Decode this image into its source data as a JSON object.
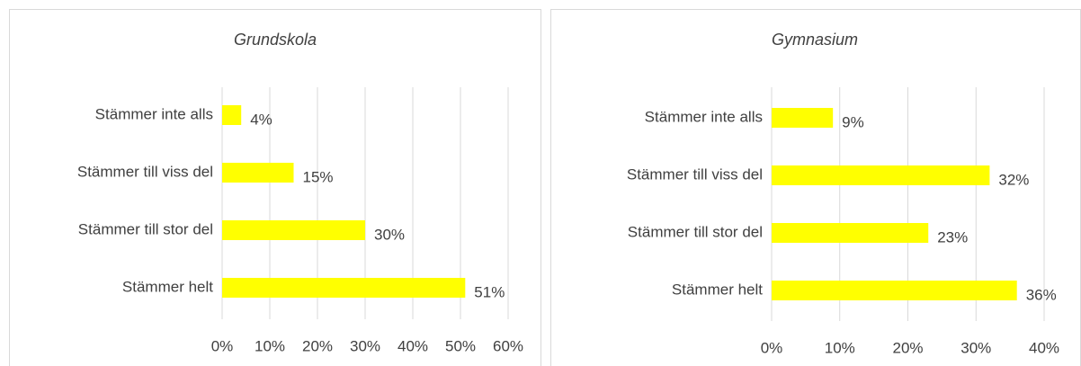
{
  "chart_data": [
    {
      "type": "bar",
      "title": "Grundskola",
      "categories": [
        "Stämmer inte alls",
        "Stämmer till viss del",
        "Stämmer till stor del",
        "Stämmer helt"
      ],
      "values": [
        4,
        15,
        30,
        51
      ],
      "value_labels": [
        "4%",
        "15%",
        "30%",
        "51%"
      ],
      "color": "#ffff00",
      "xlim": [
        0,
        60
      ],
      "xticks": [
        {
          "value": 0,
          "label": "0%"
        },
        {
          "value": 10,
          "label": "10%"
        },
        {
          "value": 20,
          "label": "20%"
        },
        {
          "value": 30,
          "label": "30%"
        },
        {
          "value": 40,
          "label": "40%"
        },
        {
          "value": 50,
          "label": "50%"
        },
        {
          "value": 60,
          "label": "60%"
        }
      ],
      "grid": true
    },
    {
      "type": "bar",
      "title": "Gymnasium",
      "categories": [
        "Stämmer inte alls",
        "Stämmer till viss del",
        "Stämmer till stor del",
        "Stämmer helt"
      ],
      "values": [
        9,
        32,
        23,
        36
      ],
      "value_labels": [
        "9%",
        "32%",
        "23%",
        "36%"
      ],
      "color": "#ffff00",
      "xlim": [
        0,
        40
      ],
      "xticks": [
        {
          "value": 0,
          "label": "0%"
        },
        {
          "value": 10,
          "label": "10%"
        },
        {
          "value": 20,
          "label": "20%"
        },
        {
          "value": 30,
          "label": "30%"
        },
        {
          "value": 40,
          "label": "40%"
        }
      ],
      "grid": true
    }
  ]
}
